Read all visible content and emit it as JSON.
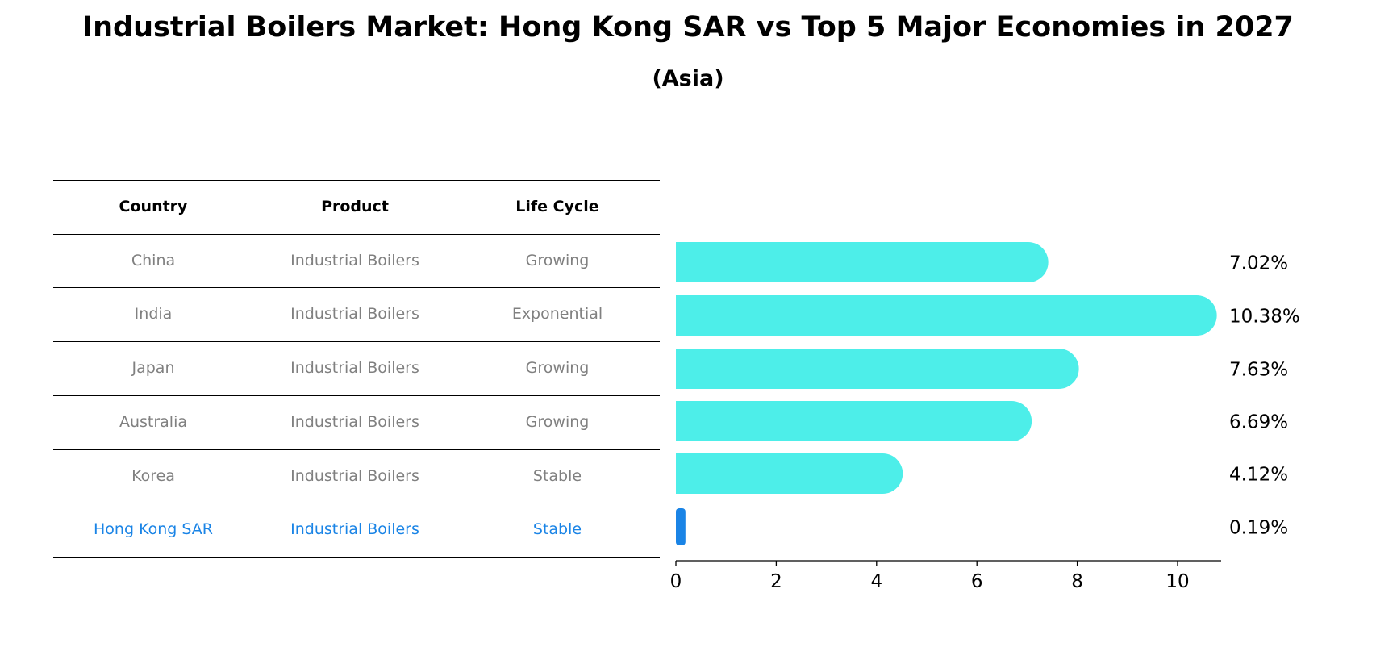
{
  "title": "Industrial Boilers Market: Hong Kong SAR vs Top 5 Major Economies in 2027",
  "subtitle": "(Asia)",
  "table": {
    "headers": [
      "Country",
      "Product",
      "Life Cycle"
    ],
    "rows": [
      {
        "country": "China",
        "product": "Industrial Boilers",
        "life_cycle": "Growing",
        "highlight": false
      },
      {
        "country": "India",
        "product": "Industrial Boilers",
        "life_cycle": "Exponential",
        "highlight": false
      },
      {
        "country": "Japan",
        "product": "Industrial Boilers",
        "life_cycle": "Growing",
        "highlight": false
      },
      {
        "country": "Australia",
        "product": "Industrial Boilers",
        "life_cycle": "Growing",
        "highlight": false
      },
      {
        "country": "Korea",
        "product": "Industrial Boilers",
        "life_cycle": "Stable",
        "highlight": false
      },
      {
        "country": "Hong Kong SAR",
        "product": "Industrial Boilers",
        "life_cycle": "Stable",
        "highlight": true
      }
    ]
  },
  "colors": {
    "bar": "#4deee9",
    "highlight": "#1a84e6",
    "muted_text": "#808080"
  },
  "chart_data": {
    "type": "bar",
    "orientation": "horizontal",
    "categories": [
      "China",
      "India",
      "Japan",
      "Australia",
      "Korea",
      "Hong Kong SAR"
    ],
    "values": [
      7.02,
      10.38,
      7.63,
      6.69,
      4.12,
      0.19
    ],
    "value_labels": [
      "7.02%",
      "10.38%",
      "7.63%",
      "6.69%",
      "4.12%",
      "0.19%"
    ],
    "xlim": [
      0,
      10.9
    ],
    "xticks": [
      0,
      2,
      4,
      6,
      8,
      10
    ],
    "xlabel": "",
    "ylabel": "",
    "grid": false,
    "legend": "none"
  }
}
